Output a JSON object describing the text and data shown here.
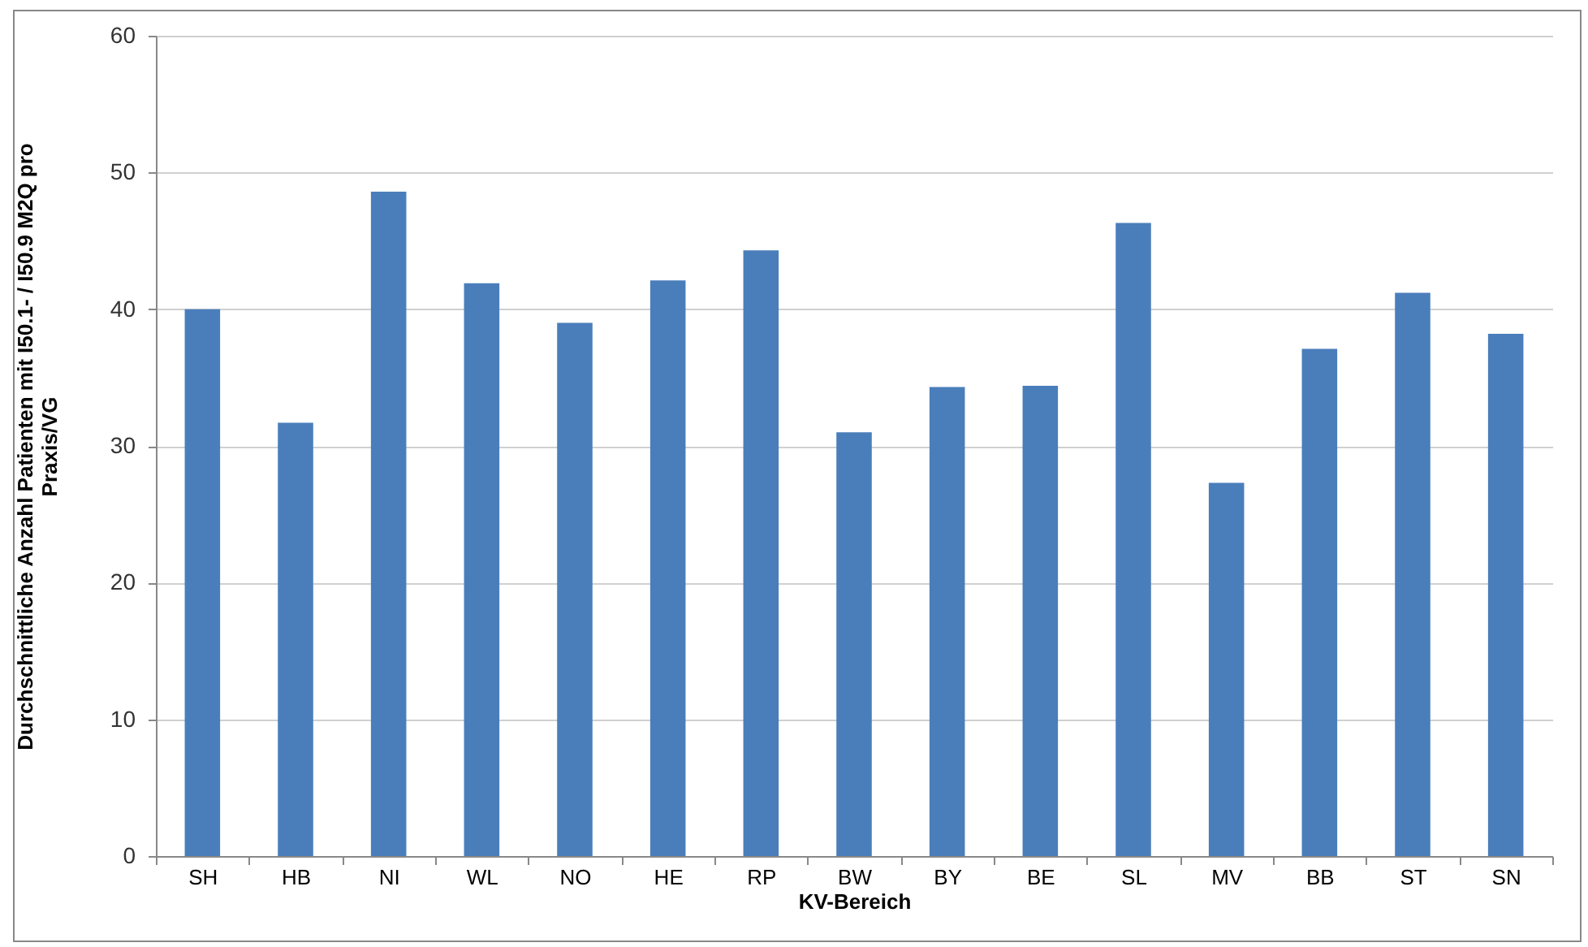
{
  "chart_data": {
    "type": "bar",
    "xlabel": "KV-Bereich",
    "ylabel": "Durchschnittliche Anzahl Patienten mit I50.1- / I50.9 M2Q pro\nPraxis/VG",
    "categories": [
      "SH",
      "HB",
      "NI",
      "WL",
      "NO",
      "HE",
      "RP",
      "BW",
      "BY",
      "BE",
      "SL",
      "MV",
      "BB",
      "ST",
      "SN"
    ],
    "values": [
      40.0,
      31.7,
      48.6,
      41.9,
      39.0,
      42.1,
      44.3,
      31.0,
      34.3,
      34.4,
      46.3,
      27.3,
      37.1,
      41.2,
      38.2
    ],
    "color": "#4a7ebb",
    "ylim": [
      0,
      60
    ],
    "yticks": [
      0,
      10,
      20,
      30,
      40,
      50,
      60
    ],
    "grid": "y"
  }
}
